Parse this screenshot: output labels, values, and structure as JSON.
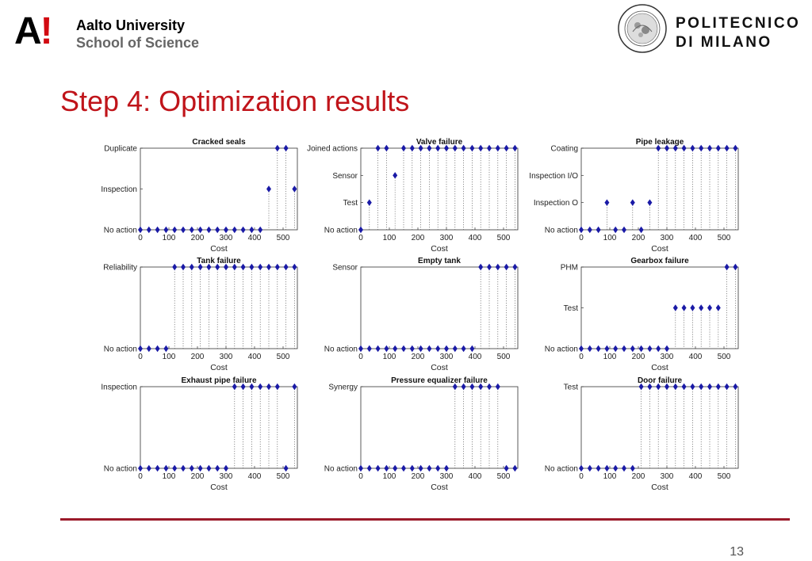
{
  "header": {
    "aalto_mark": "A",
    "aalto_bang": "!",
    "aalto_name": "Aalto University",
    "aalto_school": "School of Science",
    "polimi_line1": "POLITECNICO",
    "polimi_line2": "DI MILANO",
    "seal_text": "POLITECNICO DI MILANO"
  },
  "slide": {
    "title": "Step 4: Optimization results",
    "page_number": "13"
  },
  "colors": {
    "marker": "#1a1aa6",
    "title": "#c0141a",
    "rule": "#9b1a2a"
  },
  "chart_data": [
    {
      "type": "scatter",
      "title": "Cracked seals",
      "xlabel": "Cost",
      "xlim": [
        0,
        550
      ],
      "xticks": [
        0,
        100,
        200,
        300,
        400,
        500
      ],
      "levels": [
        "No action",
        "Inspection",
        "Duplicate"
      ],
      "x": [
        0,
        30,
        60,
        90,
        120,
        150,
        180,
        210,
        240,
        270,
        300,
        330,
        360,
        390,
        420,
        450,
        480,
        510,
        540
      ],
      "y": [
        "No action",
        "No action",
        "No action",
        "No action",
        "No action",
        "No action",
        "No action",
        "No action",
        "No action",
        "No action",
        "No action",
        "No action",
        "No action",
        "No action",
        "No action",
        "Inspection",
        "Duplicate",
        "Duplicate",
        "Inspection"
      ]
    },
    {
      "type": "scatter",
      "title": "Valve failure",
      "xlabel": "Cost",
      "xlim": [
        0,
        550
      ],
      "xticks": [
        0,
        100,
        200,
        300,
        400,
        500
      ],
      "levels": [
        "No action",
        "Test",
        "Sensor",
        "Joined actions"
      ],
      "x": [
        0,
        30,
        60,
        90,
        120,
        150,
        180,
        210,
        240,
        270,
        300,
        330,
        360,
        390,
        420,
        450,
        480,
        510,
        540
      ],
      "y": [
        "No action",
        "Test",
        "Joined actions",
        "Joined actions",
        "Sensor",
        "Joined actions",
        "Joined actions",
        "Joined actions",
        "Joined actions",
        "Joined actions",
        "Joined actions",
        "Joined actions",
        "Joined actions",
        "Joined actions",
        "Joined actions",
        "Joined actions",
        "Joined actions",
        "Joined actions",
        "Joined actions"
      ]
    },
    {
      "type": "scatter",
      "title": "Pipe leakage",
      "xlabel": "Cost",
      "xlim": [
        0,
        550
      ],
      "xticks": [
        0,
        100,
        200,
        300,
        400,
        500
      ],
      "levels": [
        "No action",
        "Inspection O",
        "Inspection I/O",
        "Coating"
      ],
      "x": [
        0,
        30,
        60,
        90,
        120,
        150,
        180,
        210,
        240,
        270,
        300,
        330,
        360,
        390,
        420,
        450,
        480,
        510,
        540
      ],
      "y": [
        "No action",
        "No action",
        "No action",
        "Inspection O",
        "No action",
        "No action",
        "Inspection O",
        "No action",
        "Inspection O",
        "Coating",
        "Coating",
        "Coating",
        "Coating",
        "Coating",
        "Coating",
        "Coating",
        "Coating",
        "Coating",
        "Coating"
      ]
    },
    {
      "type": "scatter",
      "title": "Tank failure",
      "xlabel": "Cost",
      "xlim": [
        0,
        550
      ],
      "xticks": [
        0,
        100,
        200,
        300,
        400,
        500
      ],
      "levels": [
        "No action",
        "Reliability"
      ],
      "x": [
        0,
        30,
        60,
        90,
        120,
        150,
        180,
        210,
        240,
        270,
        300,
        330,
        360,
        390,
        420,
        450,
        480,
        510,
        540
      ],
      "y": [
        "No action",
        "No action",
        "No action",
        "No action",
        "Reliability",
        "Reliability",
        "Reliability",
        "Reliability",
        "Reliability",
        "Reliability",
        "Reliability",
        "Reliability",
        "Reliability",
        "Reliability",
        "Reliability",
        "Reliability",
        "Reliability",
        "Reliability",
        "Reliability"
      ]
    },
    {
      "type": "scatter",
      "title": "Empty tank",
      "xlabel": "Cost",
      "xlim": [
        0,
        550
      ],
      "xticks": [
        0,
        100,
        200,
        300,
        400,
        500
      ],
      "levels": [
        "No action",
        "Sensor"
      ],
      "x": [
        0,
        30,
        60,
        90,
        120,
        150,
        180,
        210,
        240,
        270,
        300,
        330,
        360,
        390,
        420,
        450,
        480,
        510,
        540
      ],
      "y": [
        "No action",
        "No action",
        "No action",
        "No action",
        "No action",
        "No action",
        "No action",
        "No action",
        "No action",
        "No action",
        "No action",
        "No action",
        "No action",
        "No action",
        "Sensor",
        "Sensor",
        "Sensor",
        "Sensor",
        "Sensor"
      ]
    },
    {
      "type": "scatter",
      "title": "Gearbox failure",
      "xlabel": "Cost",
      "xlim": [
        0,
        550
      ],
      "xticks": [
        0,
        100,
        200,
        300,
        400,
        500
      ],
      "levels": [
        "No action",
        "Test",
        "PHM"
      ],
      "x": [
        0,
        30,
        60,
        90,
        120,
        150,
        180,
        210,
        240,
        270,
        300,
        330,
        360,
        390,
        420,
        450,
        480,
        510,
        540
      ],
      "y": [
        "No action",
        "No action",
        "No action",
        "No action",
        "No action",
        "No action",
        "No action",
        "No action",
        "No action",
        "No action",
        "No action",
        "Test",
        "Test",
        "Test",
        "Test",
        "Test",
        "Test",
        "PHM",
        "PHM"
      ]
    },
    {
      "type": "scatter",
      "title": "Exhaust pipe failure",
      "xlabel": "Cost",
      "xlim": [
        0,
        550
      ],
      "xticks": [
        0,
        100,
        200,
        300,
        400,
        500
      ],
      "levels": [
        "No action",
        "Inspection"
      ],
      "x": [
        0,
        30,
        60,
        90,
        120,
        150,
        180,
        210,
        240,
        270,
        300,
        330,
        360,
        390,
        420,
        450,
        480,
        510,
        540
      ],
      "y": [
        "No action",
        "No action",
        "No action",
        "No action",
        "No action",
        "No action",
        "No action",
        "No action",
        "No action",
        "No action",
        "No action",
        "Inspection",
        "Inspection",
        "Inspection",
        "Inspection",
        "Inspection",
        "Inspection",
        "No action",
        "Inspection"
      ]
    },
    {
      "type": "scatter",
      "title": "Pressure equalizer failure",
      "xlabel": "Cost",
      "xlim": [
        0,
        550
      ],
      "xticks": [
        0,
        100,
        200,
        300,
        400,
        500
      ],
      "levels": [
        "No action",
        "Synergy"
      ],
      "x": [
        0,
        30,
        60,
        90,
        120,
        150,
        180,
        210,
        240,
        270,
        300,
        330,
        360,
        390,
        420,
        450,
        480,
        510,
        540
      ],
      "y": [
        "No action",
        "No action",
        "No action",
        "No action",
        "No action",
        "No action",
        "No action",
        "No action",
        "No action",
        "No action",
        "No action",
        "Synergy",
        "Synergy",
        "Synergy",
        "Synergy",
        "Synergy",
        "Synergy",
        "No action",
        "No action"
      ]
    },
    {
      "type": "scatter",
      "title": "Door failure",
      "xlabel": "Cost",
      "xlim": [
        0,
        550
      ],
      "xticks": [
        0,
        100,
        200,
        300,
        400,
        500
      ],
      "levels": [
        "No action",
        "Test"
      ],
      "x": [
        0,
        30,
        60,
        90,
        120,
        150,
        180,
        210,
        240,
        270,
        300,
        330,
        360,
        390,
        420,
        450,
        480,
        510,
        540
      ],
      "y": [
        "No action",
        "No action",
        "No action",
        "No action",
        "No action",
        "No action",
        "No action",
        "Test",
        "Test",
        "Test",
        "Test",
        "Test",
        "Test",
        "Test",
        "Test",
        "Test",
        "Test",
        "Test",
        "Test"
      ]
    }
  ]
}
